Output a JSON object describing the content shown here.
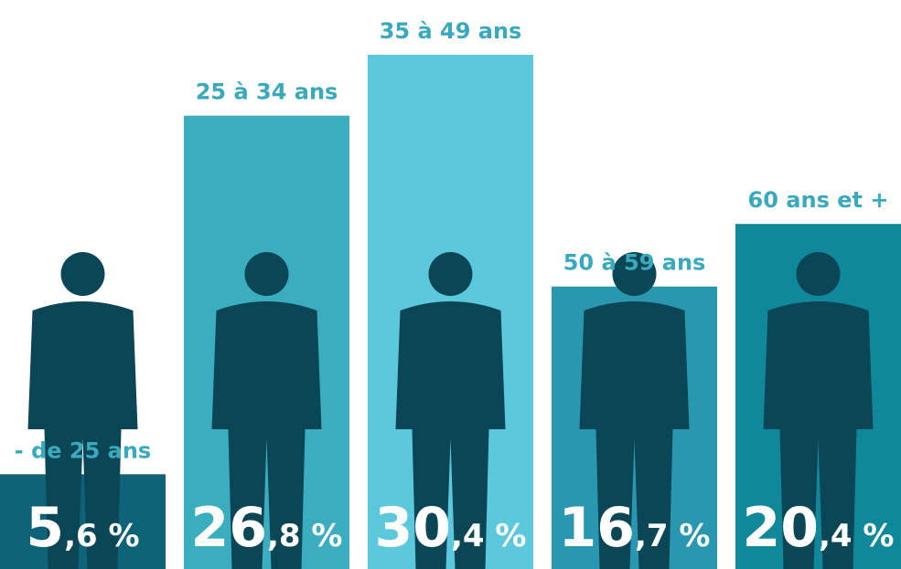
{
  "chart_data": {
    "type": "bar",
    "categories": [
      "- de 25 ans",
      "25 à 34 ans",
      "35 à 49 ans",
      "50 à 59 ans",
      "60 ans et +"
    ],
    "values": [
      5.6,
      26.8,
      30.4,
      16.7,
      20.4
    ],
    "value_labels": [
      "5,6 %",
      "26,8 %",
      "30,4 %",
      "16,7 %",
      "20,4 %"
    ],
    "colors": [
      "#0f6378",
      "#3aaebf",
      "#5bc8dc",
      "#2a97b0",
      "#10879a"
    ]
  }
}
